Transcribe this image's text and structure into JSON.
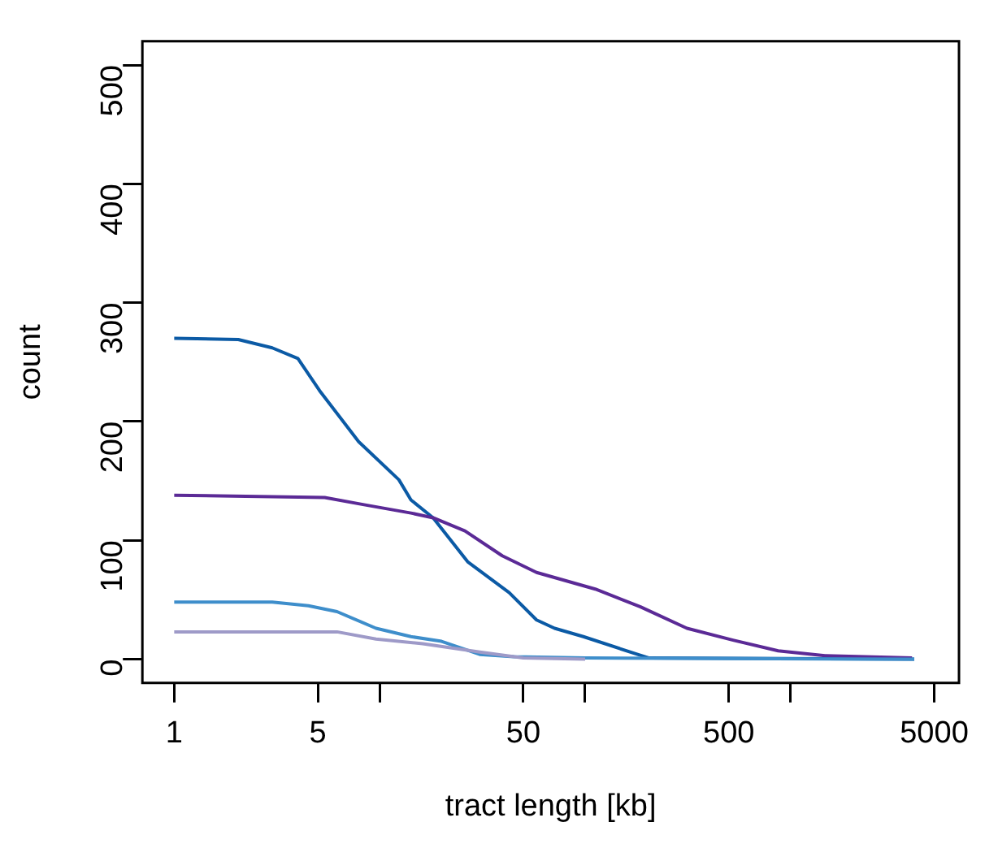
{
  "chart_data": {
    "type": "line",
    "xlabel": "tract length [kb]",
    "ylabel": "count",
    "log": "x",
    "xlim": [
      0.72,
      6600
    ],
    "ylim": [
      -20,
      520
    ],
    "xticks": [
      1,
      5,
      {
        "value": 10,
        "label": null
      },
      50,
      {
        "value": 100,
        "label": null
      },
      500,
      {
        "value": 1000,
        "label": null
      },
      5000
    ],
    "yticks": [
      0,
      100,
      200,
      300,
      400,
      500
    ],
    "grid": false,
    "legend": false,
    "marker": "none",
    "line_style": "solid",
    "series": [
      {
        "color": "#9e9ac8",
        "x": [
          1,
          6.2,
          9.6,
          16.2,
          30.7,
          50,
          100
        ],
        "values": [
          23,
          23,
          17,
          13,
          6,
          1,
          0
        ]
      },
      {
        "color": "#3e8ecb",
        "x": [
          1,
          3,
          4.5,
          6.2,
          9.6,
          14.2,
          20,
          30.7,
          45,
          100,
          4000
        ],
        "values": [
          48,
          48,
          45,
          40,
          26,
          19,
          15,
          4,
          2,
          1,
          0
        ]
      },
      {
        "color": "#5b2a96",
        "x": [
          1,
          5.4,
          8.4,
          14.2,
          18.2,
          26,
          39.5,
          58,
          112,
          186,
          313,
          525,
          870,
          1470,
          3900
        ],
        "values": [
          138,
          136,
          130,
          123,
          119,
          108,
          87,
          73,
          59,
          44,
          26,
          16,
          7,
          3,
          1
        ]
      },
      {
        "color": "#0b5aa5",
        "x": [
          1,
          2.05,
          3,
          4,
          5.1,
          7.9,
          12.4,
          14.2,
          18.2,
          26.8,
          42.7,
          58,
          71,
          98,
          180,
          205,
          4000
        ],
        "values": [
          270,
          269,
          262,
          253,
          226,
          183,
          151,
          134,
          119,
          82,
          56,
          33,
          26,
          19,
          4,
          1,
          0
        ]
      }
    ]
  }
}
